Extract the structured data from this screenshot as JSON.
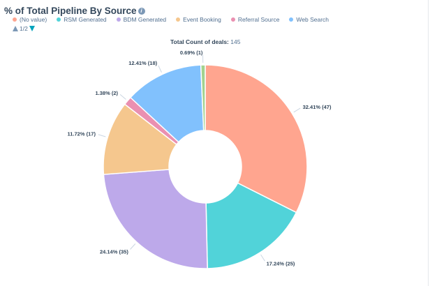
{
  "title": "% of Total Pipeline By Source",
  "legend": [
    {
      "label": "(No value)",
      "color": "#ffa58f"
    },
    {
      "label": "RSM Generated",
      "color": "#51d3d9"
    },
    {
      "label": "BDM Generated",
      "color": "#bda9ea"
    },
    {
      "label": "Event Booking",
      "color": "#f5c78e"
    },
    {
      "label": "Referral Source",
      "color": "#ea90b1"
    },
    {
      "label": "Web Search",
      "color": "#81c1fd"
    }
  ],
  "pager": "1/2",
  "total": {
    "label": "Total Count of deals:",
    "value": "145"
  },
  "chart_data": {
    "type": "donut",
    "title": "% of Total Pipeline By Source",
    "subtitle": "Total Count of deals: 145",
    "slices": [
      {
        "name": "(No value)",
        "percent": 32.41,
        "count": 47,
        "label": "32.41% (47)",
        "color": "#ffa58f"
      },
      {
        "name": "RSM Generated",
        "percent": 17.24,
        "count": 25,
        "label": "17.24% (25)",
        "color": "#51d3d9"
      },
      {
        "name": "BDM Generated",
        "percent": 24.14,
        "count": 35,
        "label": "24.14% (35)",
        "color": "#bda9ea"
      },
      {
        "name": "Event Booking",
        "percent": 11.72,
        "count": 17,
        "label": "11.72% (17)",
        "color": "#f5c78e"
      },
      {
        "name": "Referral Source",
        "percent": 1.38,
        "count": 2,
        "label": "1.38% (2)",
        "color": "#ea90b1"
      },
      {
        "name": "Web Search",
        "percent": 12.41,
        "count": 18,
        "label": "12.41% (18)",
        "color": "#81c1fd"
      },
      {
        "percent": 0.69,
        "count": 1,
        "label": "0.69% (1)",
        "color": "#a2d28f"
      }
    ],
    "legend_placement": "top-left"
  }
}
